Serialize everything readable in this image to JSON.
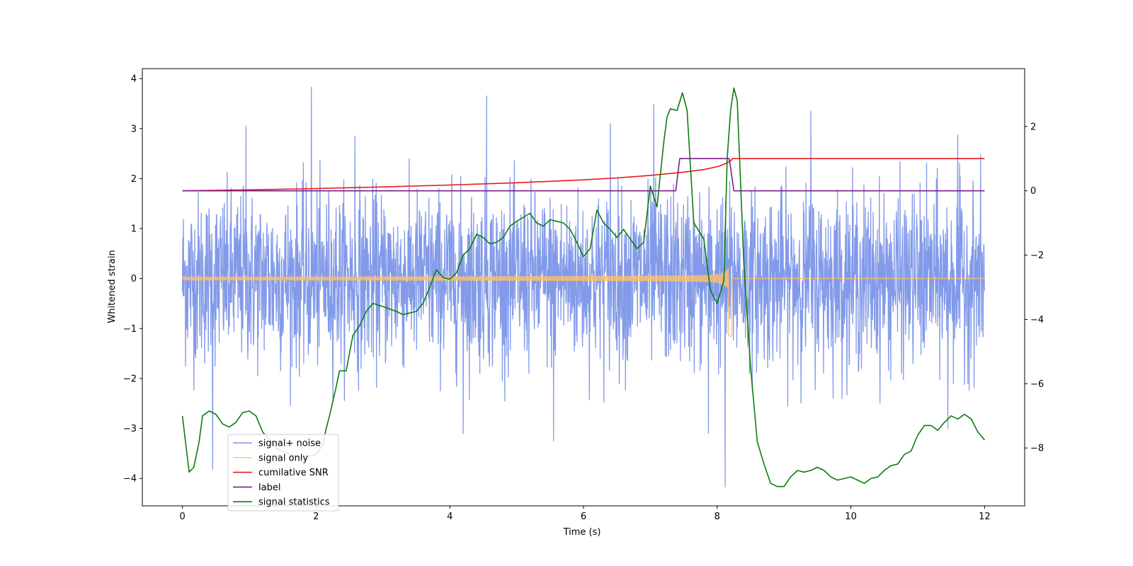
{
  "chart_data": {
    "type": "line",
    "title": "",
    "xlabel": "Time (s)",
    "ylabel": "Whitened strain",
    "xlim": [
      -0.6,
      12.6
    ],
    "ylim": [
      -4.55,
      4.2
    ],
    "y2lim": [
      -9.8,
      3.8
    ],
    "x_ticks": [
      0,
      2,
      4,
      6,
      8,
      10,
      12
    ],
    "x_tick_labels": [
      "0",
      "2",
      "4",
      "6",
      "8",
      "10",
      "12"
    ],
    "y_ticks": [
      4,
      3,
      2,
      1,
      0,
      -1,
      -2,
      -3,
      -4
    ],
    "y_tick_labels": [
      "4",
      "3",
      "2",
      "1",
      "0",
      "−1",
      "−2",
      "−3",
      "−4"
    ],
    "y2_ticks": [
      2,
      0,
      -2,
      -4,
      -6,
      -8
    ],
    "y2_tick_labels": [
      "2",
      "0",
      "−2",
      "−4",
      "−6",
      "−8"
    ],
    "legend_position": "lower-left",
    "series": [
      {
        "name": "signal+ noise",
        "axis": "left",
        "color": "#7b95e8",
        "kind": "gaussian-noise",
        "x_range": [
          0,
          12
        ],
        "std": 0.85,
        "n_samples": 2600,
        "peaks": [
          {
            "x": 0.95,
            "y": 3.05
          },
          {
            "x": 1.93,
            "y": 3.83
          },
          {
            "x": 2.58,
            "y": 2.85
          },
          {
            "x": 4.55,
            "y": 3.65
          },
          {
            "x": 6.4,
            "y": 3.1
          },
          {
            "x": 7.05,
            "y": 3.48
          },
          {
            "x": 9.4,
            "y": 3.35
          },
          {
            "x": 11.6,
            "y": 2.87
          },
          {
            "x": 0.45,
            "y": -3.82
          },
          {
            "x": 4.2,
            "y": -3.1
          },
          {
            "x": 5.55,
            "y": -3.25
          },
          {
            "x": 7.87,
            "y": -3.1
          },
          {
            "x": 8.12,
            "y": -4.17
          },
          {
            "x": 11.45,
            "y": -3.0
          }
        ]
      },
      {
        "name": "signal only",
        "axis": "left",
        "color": "#ffc069",
        "kind": "chirp",
        "x_range": [
          0,
          12
        ],
        "merger_time": 8.22,
        "amp_start": 0.03,
        "amp_peak": 1.0
      },
      {
        "name": "cumilative SNR",
        "axis": "right",
        "color": "#e8171b",
        "kind": "curve",
        "points": [
          [
            0,
            0
          ],
          [
            1,
            0.03
          ],
          [
            2,
            0.07
          ],
          [
            3,
            0.12
          ],
          [
            4,
            0.18
          ],
          [
            5,
            0.25
          ],
          [
            6,
            0.34
          ],
          [
            6.5,
            0.4
          ],
          [
            7,
            0.48
          ],
          [
            7.5,
            0.58
          ],
          [
            7.8,
            0.66
          ],
          [
            8.0,
            0.75
          ],
          [
            8.1,
            0.82
          ],
          [
            8.2,
            0.93
          ],
          [
            8.23,
            1.0
          ],
          [
            12,
            1.0
          ]
        ]
      },
      {
        "name": "label",
        "axis": "right",
        "color": "#7b1d8a",
        "kind": "step",
        "points": [
          [
            0,
            0
          ],
          [
            7.38,
            0
          ],
          [
            7.44,
            1.0
          ],
          [
            8.18,
            1.0
          ],
          [
            8.25,
            0
          ],
          [
            12,
            0
          ]
        ]
      },
      {
        "name": "signal statistics",
        "axis": "right",
        "color": "#0c7d0c",
        "kind": "curve",
        "points": [
          [
            0,
            -7.0
          ],
          [
            0.1,
            -8.75
          ],
          [
            0.17,
            -8.6
          ],
          [
            0.25,
            -7.8
          ],
          [
            0.3,
            -7.0
          ],
          [
            0.4,
            -6.85
          ],
          [
            0.5,
            -6.95
          ],
          [
            0.6,
            -7.25
          ],
          [
            0.7,
            -7.35
          ],
          [
            0.8,
            -7.2
          ],
          [
            0.9,
            -6.9
          ],
          [
            1.0,
            -6.85
          ],
          [
            1.1,
            -7.0
          ],
          [
            1.2,
            -7.5
          ],
          [
            1.4,
            -8.0
          ],
          [
            1.6,
            -8.2
          ],
          [
            1.8,
            -8.3
          ],
          [
            2.0,
            -8.2
          ],
          [
            2.1,
            -7.9
          ],
          [
            2.15,
            -7.4
          ],
          [
            2.2,
            -7.0
          ],
          [
            2.3,
            -6.1
          ],
          [
            2.35,
            -5.6
          ],
          [
            2.45,
            -5.6
          ],
          [
            2.55,
            -4.5
          ],
          [
            2.65,
            -4.2
          ],
          [
            2.75,
            -3.75
          ],
          [
            2.85,
            -3.5
          ],
          [
            3.0,
            -3.6
          ],
          [
            3.2,
            -3.75
          ],
          [
            3.3,
            -3.85
          ],
          [
            3.5,
            -3.75
          ],
          [
            3.6,
            -3.5
          ],
          [
            3.7,
            -3.0
          ],
          [
            3.8,
            -2.45
          ],
          [
            3.9,
            -2.7
          ],
          [
            4.0,
            -2.75
          ],
          [
            4.1,
            -2.55
          ],
          [
            4.2,
            -2.0
          ],
          [
            4.3,
            -1.8
          ],
          [
            4.4,
            -1.35
          ],
          [
            4.5,
            -1.45
          ],
          [
            4.6,
            -1.65
          ],
          [
            4.7,
            -1.6
          ],
          [
            4.8,
            -1.45
          ],
          [
            4.9,
            -1.1
          ],
          [
            5.0,
            -0.95
          ],
          [
            5.2,
            -0.7
          ],
          [
            5.3,
            -1.0
          ],
          [
            5.4,
            -1.1
          ],
          [
            5.5,
            -0.9
          ],
          [
            5.6,
            -0.95
          ],
          [
            5.7,
            -1.0
          ],
          [
            5.8,
            -1.2
          ],
          [
            5.9,
            -1.6
          ],
          [
            6.0,
            -2.05
          ],
          [
            6.1,
            -1.8
          ],
          [
            6.2,
            -0.6
          ],
          [
            6.3,
            -1.0
          ],
          [
            6.4,
            -1.2
          ],
          [
            6.5,
            -1.45
          ],
          [
            6.6,
            -1.2
          ],
          [
            6.7,
            -1.5
          ],
          [
            6.8,
            -1.8
          ],
          [
            6.9,
            -1.6
          ],
          [
            7.0,
            0.15
          ],
          [
            7.1,
            -0.5
          ],
          [
            7.2,
            1.5
          ],
          [
            7.25,
            2.3
          ],
          [
            7.3,
            2.55
          ],
          [
            7.4,
            2.5
          ],
          [
            7.48,
            3.05
          ],
          [
            7.55,
            2.5
          ],
          [
            7.65,
            -1.0
          ],
          [
            7.8,
            -1.5
          ],
          [
            7.9,
            -3.1
          ],
          [
            8.0,
            -3.5
          ],
          [
            8.1,
            -2.8
          ],
          [
            8.15,
            1.0
          ],
          [
            8.2,
            2.5
          ],
          [
            8.25,
            3.2
          ],
          [
            8.3,
            2.8
          ],
          [
            8.4,
            -2.3
          ],
          [
            8.5,
            -5.5
          ],
          [
            8.6,
            -7.8
          ],
          [
            8.7,
            -8.5
          ],
          [
            8.8,
            -9.1
          ],
          [
            8.9,
            -9.2
          ],
          [
            9.0,
            -9.2
          ],
          [
            9.1,
            -8.9
          ],
          [
            9.2,
            -8.7
          ],
          [
            9.3,
            -8.75
          ],
          [
            9.4,
            -8.7
          ],
          [
            9.5,
            -8.6
          ],
          [
            9.6,
            -8.7
          ],
          [
            9.7,
            -8.9
          ],
          [
            9.8,
            -9.0
          ],
          [
            9.9,
            -8.95
          ],
          [
            10.0,
            -8.9
          ],
          [
            10.1,
            -9.0
          ],
          [
            10.2,
            -9.1
          ],
          [
            10.3,
            -8.95
          ],
          [
            10.4,
            -8.9
          ],
          [
            10.5,
            -8.7
          ],
          [
            10.6,
            -8.55
          ],
          [
            10.7,
            -8.5
          ],
          [
            10.8,
            -8.2
          ],
          [
            10.9,
            -8.1
          ],
          [
            11.0,
            -7.6
          ],
          [
            11.1,
            -7.3
          ],
          [
            11.2,
            -7.3
          ],
          [
            11.3,
            -7.45
          ],
          [
            11.4,
            -7.2
          ],
          [
            11.5,
            -7.0
          ],
          [
            11.6,
            -7.1
          ],
          [
            11.7,
            -6.95
          ],
          [
            11.8,
            -7.1
          ],
          [
            11.9,
            -7.5
          ],
          [
            12.0,
            -7.75
          ]
        ]
      }
    ]
  }
}
